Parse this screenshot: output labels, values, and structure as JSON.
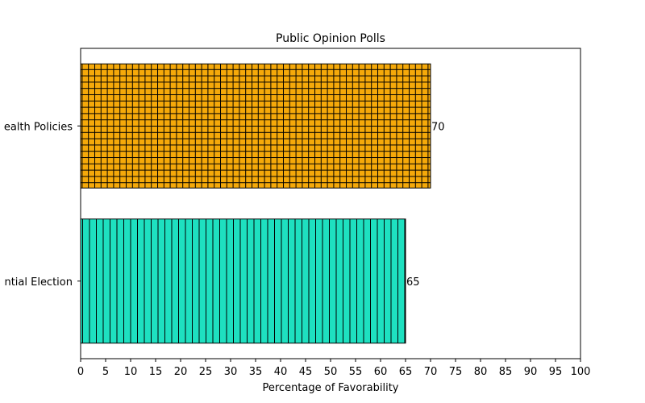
{
  "chart_data": {
    "type": "bar",
    "orientation": "horizontal",
    "title": "Public Opinion Polls",
    "xlabel": "Percentage of Favorability",
    "ylabel": "",
    "xlim": [
      0,
      100
    ],
    "xticks": [
      "0",
      "5",
      "10",
      "15",
      "20",
      "25",
      "30",
      "35",
      "40",
      "45",
      "50",
      "55",
      "60",
      "65",
      "70",
      "75",
      "80",
      "85",
      "90",
      "95",
      "100"
    ],
    "categories": [
      "Presidential Election",
      "Health Policies"
    ],
    "category_labels_visible": [
      "ntial Election",
      "ealth Policies"
    ],
    "values": [
      65,
      70
    ],
    "value_labels": [
      "65",
      "70"
    ],
    "colors": [
      "#1ee0c0",
      "#f5a90a"
    ],
    "hatch": [
      "vertical-lines",
      "grid"
    ],
    "grid": false,
    "legend": "none"
  }
}
